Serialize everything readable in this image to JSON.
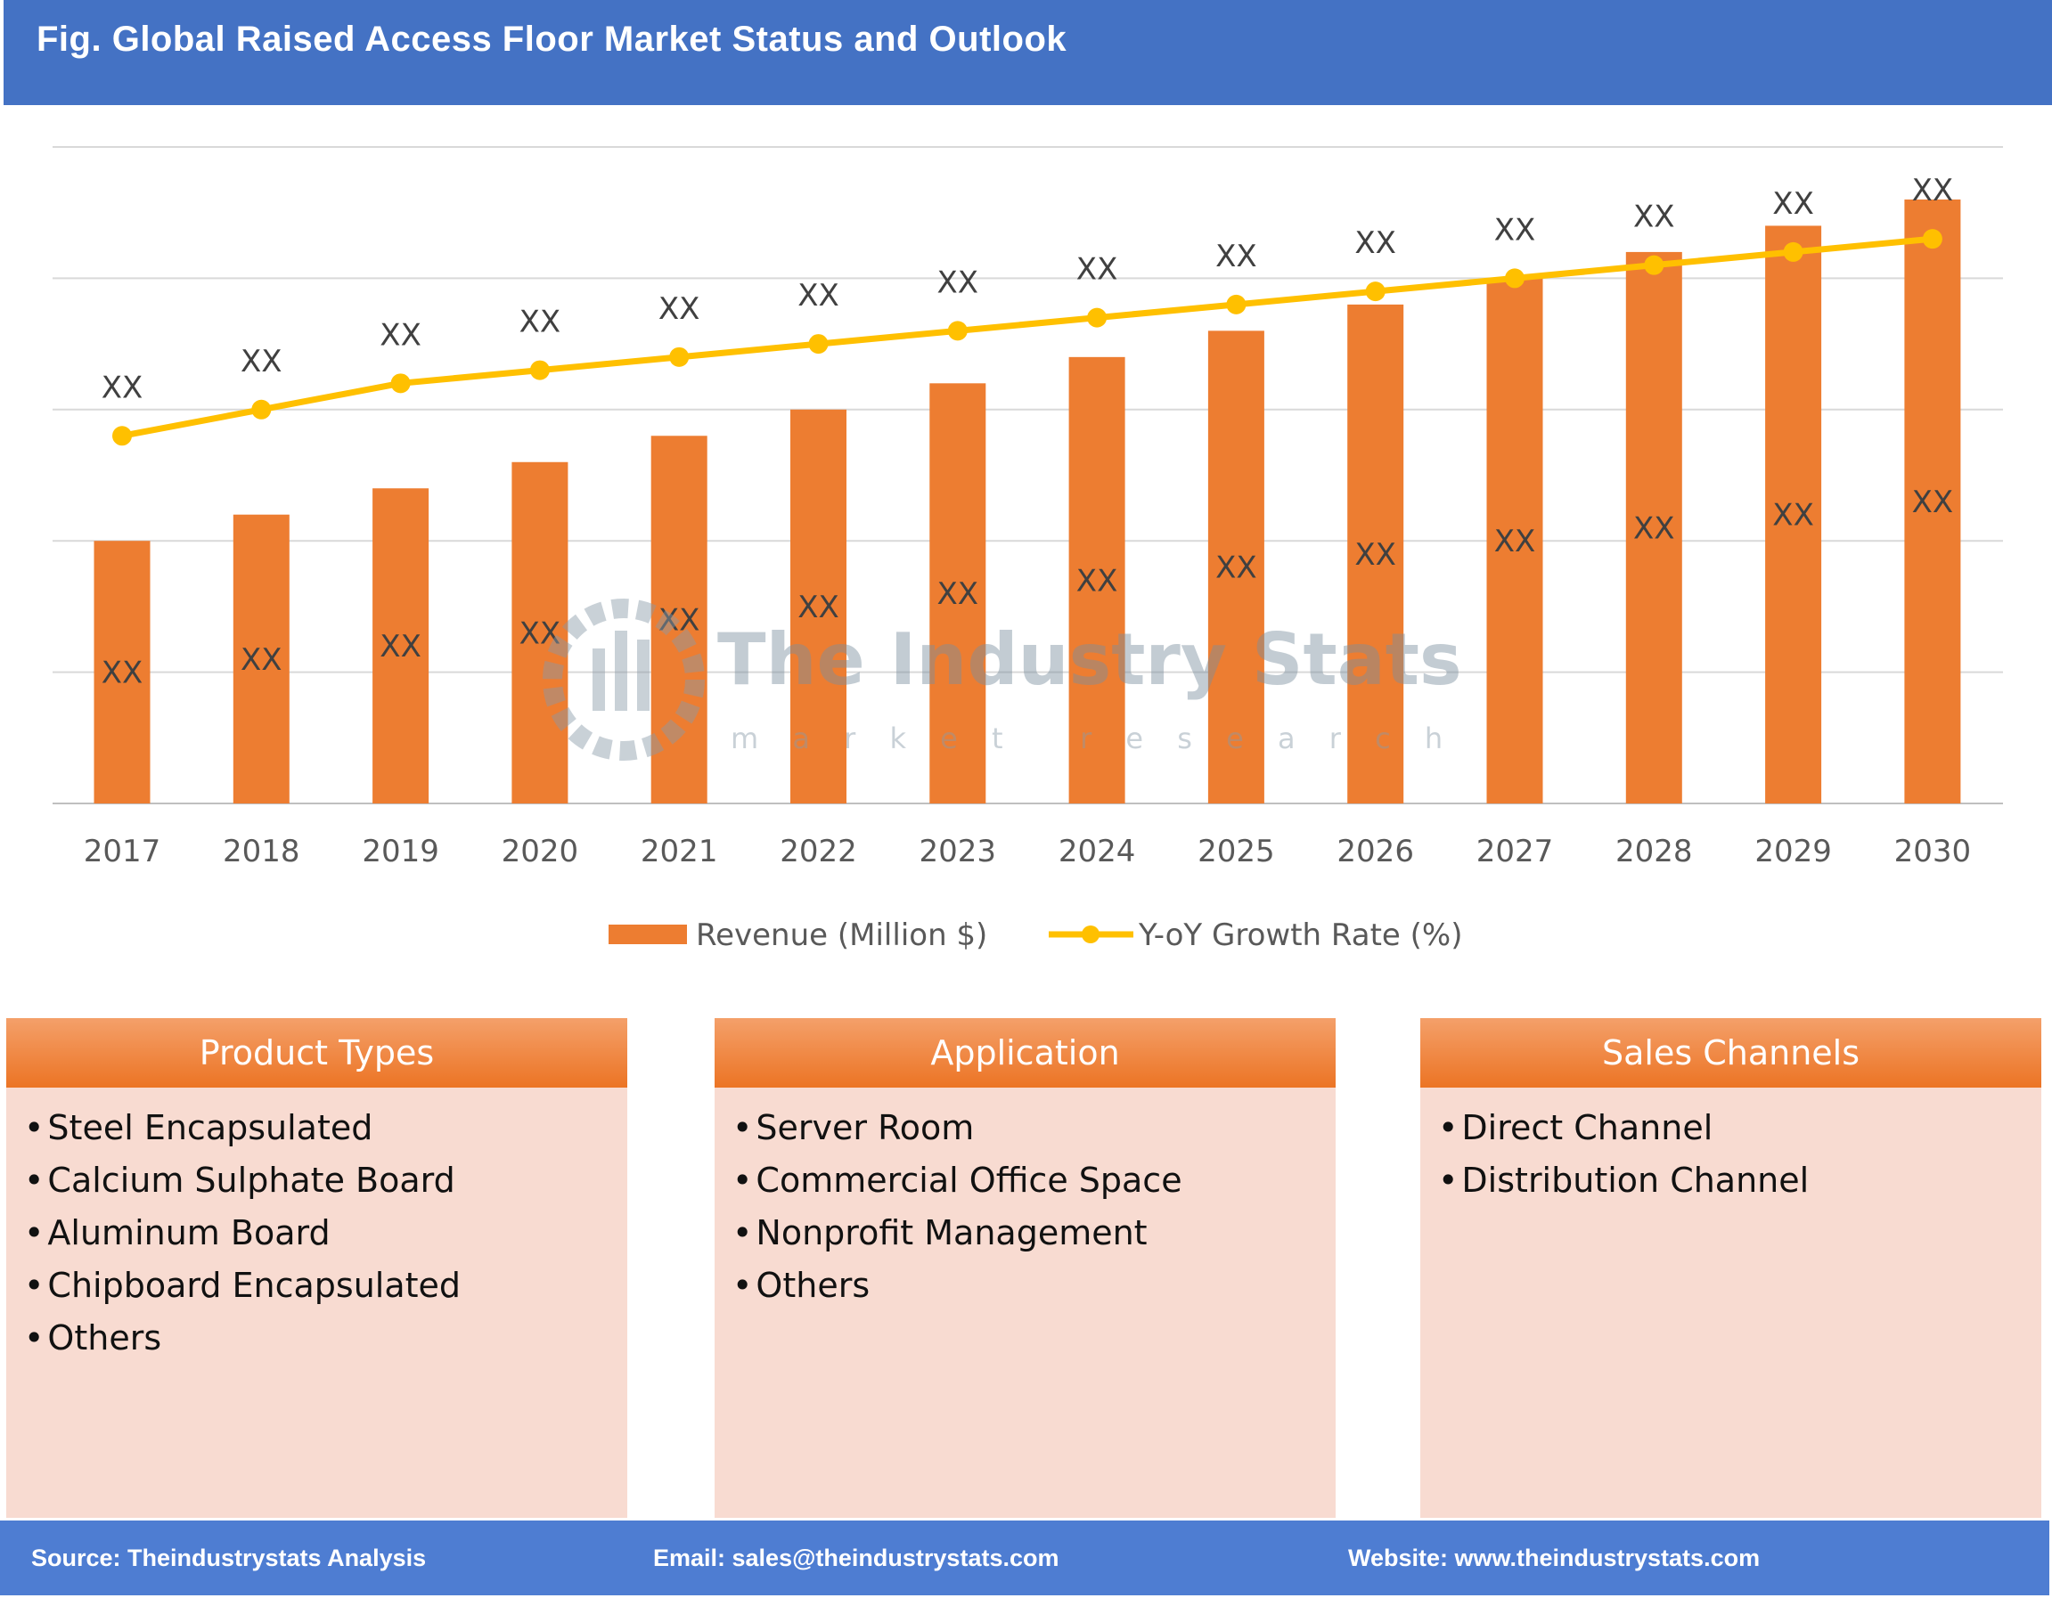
{
  "header": {
    "title": "Fig. Global Raised Access Floor Market Status and Outlook"
  },
  "watermark": {
    "name": "The Industry Stats",
    "tagline": "m a r k e t   r e s e a r c h"
  },
  "chart_data": {
    "type": "bar+line",
    "categories": [
      "2017",
      "2018",
      "2019",
      "2020",
      "2021",
      "2022",
      "2023",
      "2024",
      "2025",
      "2026",
      "2027",
      "2028",
      "2029",
      "2030"
    ],
    "series": [
      {
        "name": "Revenue (Million $)",
        "type": "bar",
        "color": "#ed7d31",
        "values": [
          100,
          110,
          120,
          130,
          140,
          150,
          160,
          170,
          180,
          190,
          200,
          210,
          220,
          230
        ],
        "labels": [
          "XX",
          "XX",
          "XX",
          "XX",
          "XX",
          "XX",
          "XX",
          "XX",
          "XX",
          "XX",
          "XX",
          "XX",
          "XX",
          "XX"
        ]
      },
      {
        "name": "Y-oY Growth Rate (%)",
        "type": "line",
        "color": "#ffc000",
        "values": [
          140,
          150,
          160,
          165,
          170,
          175,
          180,
          185,
          190,
          195,
          200,
          205,
          210,
          215
        ],
        "labels": [
          "XX",
          "XX",
          "XX",
          "XX",
          "XX",
          "XX",
          "XX",
          "XX",
          "XX",
          "XX",
          "XX",
          "XX",
          "XX",
          "XX"
        ]
      }
    ],
    "ylim": [
      0,
      250
    ],
    "grid": true,
    "legend": "bottom",
    "note": "values are relative; the chart prints no axis values, only XX placeholders"
  },
  "panels": [
    {
      "title": "Product Types",
      "items": [
        "Steel Encapsulated",
        "Calcium Sulphate Board",
        "Aluminum Board",
        "Chipboard Encapsulated",
        "Others"
      ]
    },
    {
      "title": "Application",
      "items": [
        "Server Room",
        "Commercial Office Space",
        "Nonprofit Management",
        "Others"
      ]
    },
    {
      "title": "Sales Channels",
      "items": [
        "Direct Channel",
        "Distribution Channel"
      ]
    }
  ],
  "footer": {
    "source": "Source: Theindustrystats Analysis",
    "email": "Email: sales@theindustrystats.com",
    "website": "Website: www.theindustrystats.com"
  }
}
